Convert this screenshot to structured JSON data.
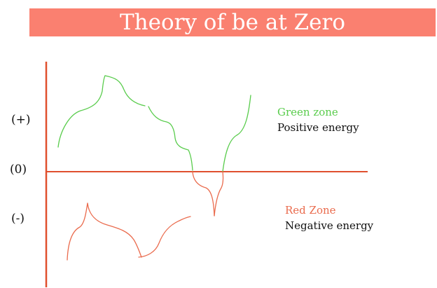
{
  "title": "Theory of be at Zero",
  "axis_labels": {
    "plus": "(+)",
    "zero": "(0)",
    "minus": "(-)"
  },
  "legend": {
    "green": {
      "title": "Green zone",
      "description": "Positive energy"
    },
    "red": {
      "title": "Red Zone",
      "description": "Negative energy"
    }
  },
  "colors": {
    "banner": "#fa8070",
    "axis": "#e0502e",
    "green": "#59cc4c",
    "red": "#ea6b4d",
    "text": "#111111"
  }
}
